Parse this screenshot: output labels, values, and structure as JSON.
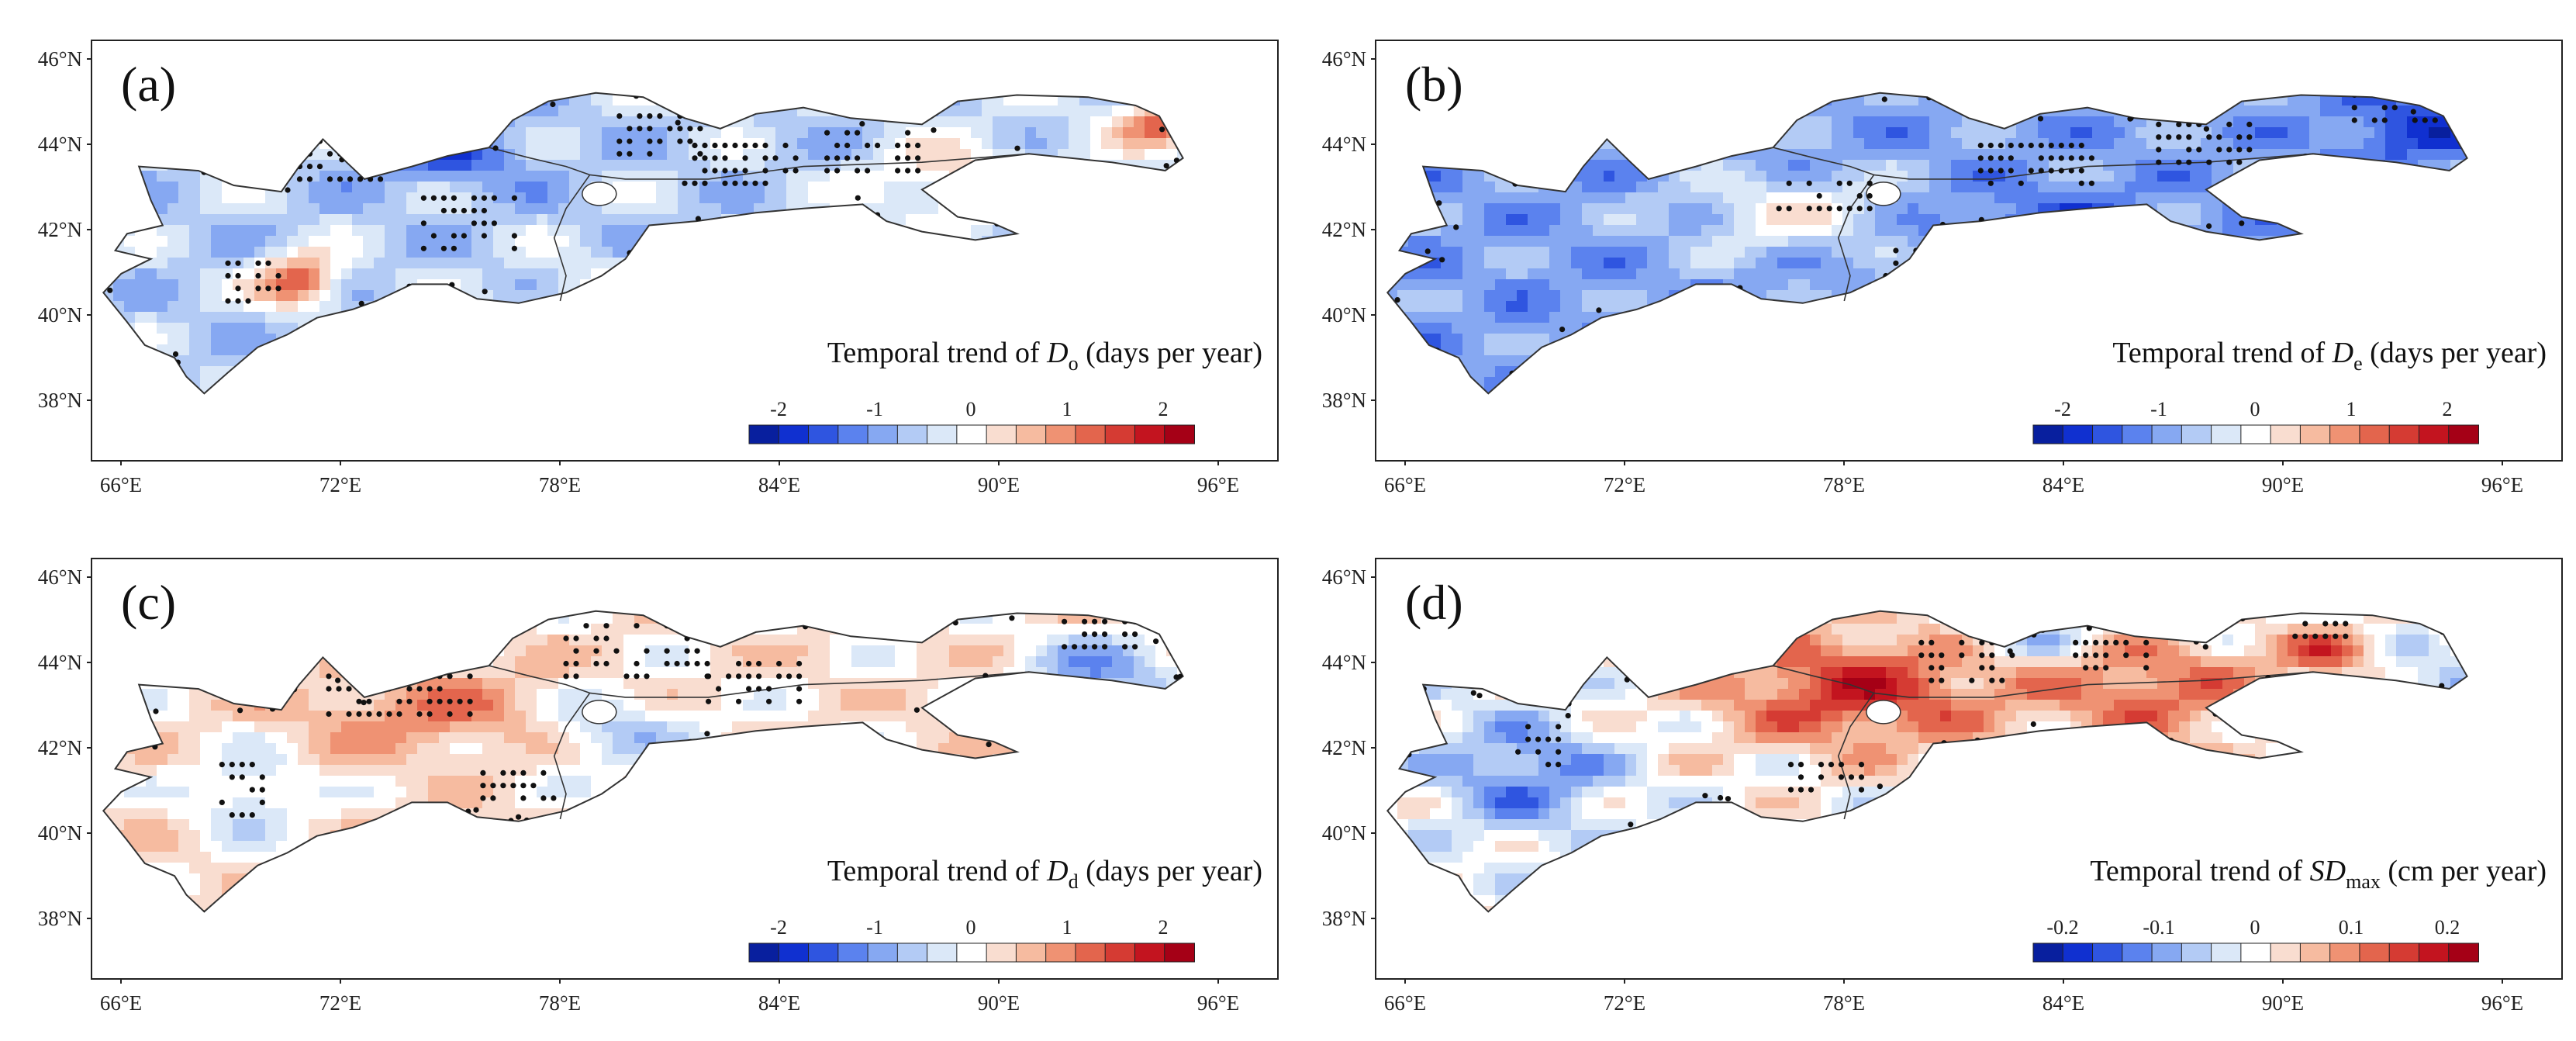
{
  "figure": {
    "colors": {
      "frame": "#222222",
      "outline": "#333333",
      "dot": "#111111",
      "ramp_blue": [
        "#081f9e",
        "#1030d0",
        "#2f55e0",
        "#5b82ee",
        "#86a8f2",
        "#b3cbf5",
        "#dbe8f8"
      ],
      "ramp_mid": "#ffffff",
      "ramp_red": [
        "#f9ddd0",
        "#f6bba0",
        "#ef9273",
        "#e3654d",
        "#d53b33",
        "#c3141f",
        "#a50016"
      ]
    },
    "panels": [
      {
        "id": "a",
        "label": "(a)",
        "title_prefix": "Temporal trend of ",
        "symbol": "D",
        "subscript": "o",
        "title_suffix": " (days per year)",
        "colorbar_ticks": [
          "-2",
          "-1",
          "0",
          "1",
          "2"
        ],
        "lat_labels": [
          "46°N",
          "44°N",
          "42°N",
          "40°N",
          "38°N"
        ],
        "lon_labels": [
          "66°E",
          "72°E",
          "78°E",
          "84°E",
          "90°E",
          "96°E"
        ],
        "character": "mixed"
      },
      {
        "id": "b",
        "label": "(b)",
        "title_prefix": "Temporal trend of ",
        "symbol": "D",
        "subscript": "e",
        "title_suffix": " (days per year)",
        "colorbar_ticks": [
          "-2",
          "-1",
          "0",
          "1",
          "2"
        ],
        "lat_labels": [
          "46°N",
          "44°N",
          "42°N",
          "40°N",
          "38°N"
        ],
        "lon_labels": [
          "66°E",
          "72°E",
          "78°E",
          "84°E",
          "90°E",
          "96°E"
        ],
        "character": "mostly negative"
      },
      {
        "id": "c",
        "label": "(c)",
        "title_prefix": "Temporal trend of ",
        "symbol": "D",
        "subscript": "d",
        "title_suffix": " (days per year)",
        "colorbar_ticks": [
          "-2",
          "-1",
          "0",
          "1",
          "2"
        ],
        "lat_labels": [
          "46°N",
          "44°N",
          "42°N",
          "40°N",
          "38°N"
        ],
        "lon_labels": [
          "66°E",
          "72°E",
          "78°E",
          "84°E",
          "90°E",
          "96°E"
        ],
        "character": "mixed, positive west"
      },
      {
        "id": "d",
        "label": "(d)",
        "title_prefix": "Temporal trend of ",
        "symbol": "SD",
        "subscript": "max",
        "title_suffix": " (cm per year)",
        "colorbar_ticks": [
          "-0.2",
          "-0.1",
          "0",
          "0.1",
          "0.2"
        ],
        "lat_labels": [
          "46°N",
          "44°N",
          "42°N",
          "40°N",
          "38°N"
        ],
        "lon_labels": [
          "66°E",
          "72°E",
          "78°E",
          "84°E",
          "90°E",
          "96°E"
        ],
        "character": "strongly positive center, negative west"
      }
    ]
  }
}
